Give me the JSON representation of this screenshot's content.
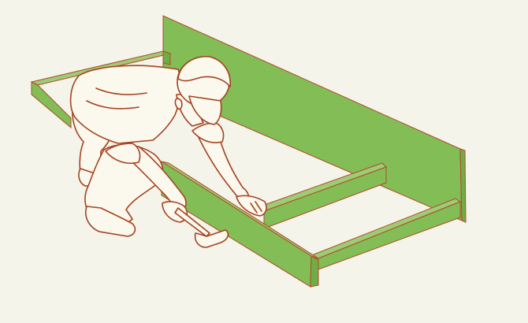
{
  "illustration": {
    "subject": "worker-assembling-wooden-frame",
    "colors": {
      "background": "#f4f4ea",
      "board_face": "#82bd55",
      "board_side": "#6fae45",
      "board_top": "#9ccc74",
      "board_edge": "#b24a2a",
      "figure_outline": "#a4431f",
      "figure_fill": "#fbf8ee"
    },
    "icons": [
      "hammer-icon"
    ]
  }
}
